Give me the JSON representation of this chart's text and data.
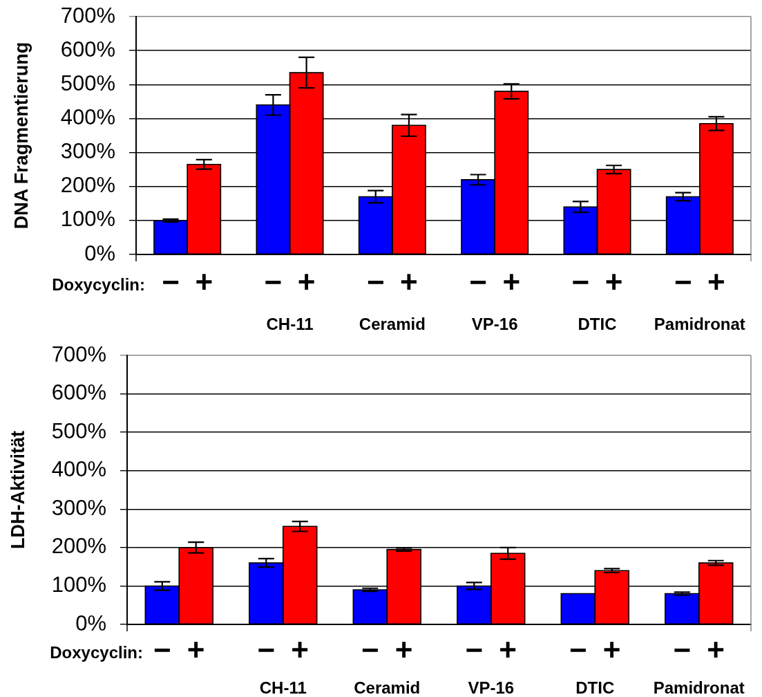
{
  "chart_data": [
    {
      "type": "bar",
      "ylabel": "DNA Fragmentierung",
      "legend_title": "Doxycyclin:",
      "legend": "bottom left",
      "categories": [
        null,
        "CH-11",
        "Ceramid",
        "VP-16",
        "DTIC",
        "Pamidronat"
      ],
      "series": [
        {
          "name": "−",
          "color": "#0000ff",
          "values": [
            100,
            440,
            170,
            220,
            140,
            170
          ],
          "errors": [
            4,
            30,
            18,
            15,
            16,
            12
          ]
        },
        {
          "name": "+",
          "color": "#ff0000",
          "values": [
            265,
            535,
            380,
            480,
            250,
            385
          ],
          "errors": [
            14,
            45,
            32,
            22,
            12,
            20
          ]
        }
      ],
      "ylim": [
        0,
        700
      ],
      "yticks": [
        {
          "value": 0,
          "label": "0%"
        },
        {
          "value": 100,
          "label": "100%"
        },
        {
          "value": 200,
          "label": "200%"
        },
        {
          "value": 300,
          "label": "300%"
        },
        {
          "value": 400,
          "label": "400%"
        },
        {
          "value": 500,
          "label": "500%"
        },
        {
          "value": 600,
          "label": "600%"
        },
        {
          "value": 700,
          "label": "700%"
        }
      ],
      "grid": "y"
    },
    {
      "type": "bar",
      "ylabel": "LDH-Aktivität",
      "legend_title": "Doxycyclin:",
      "legend": "bottom left",
      "categories": [
        null,
        "CH-11",
        "Ceramid",
        "VP-16",
        "DTIC",
        "Pamidronat"
      ],
      "series": [
        {
          "name": "−",
          "color": "#0000ff",
          "values": [
            100,
            160,
            90,
            100,
            80,
            80
          ],
          "errors": [
            11,
            11,
            4,
            9,
            null,
            4
          ]
        },
        {
          "name": "+",
          "color": "#ff0000",
          "values": [
            200,
            255,
            195,
            185,
            140,
            160
          ],
          "errors": [
            14,
            13,
            4,
            15,
            5,
            6
          ]
        }
      ],
      "ylim": [
        0,
        700
      ],
      "yticks": [
        {
          "value": 0,
          "label": "0%"
        },
        {
          "value": 100,
          "label": "100%"
        },
        {
          "value": 200,
          "label": "200%"
        },
        {
          "value": 300,
          "label": "300%"
        },
        {
          "value": 400,
          "label": "400%"
        },
        {
          "value": 500,
          "label": "500%"
        },
        {
          "value": 600,
          "label": "600%"
        },
        {
          "value": 700,
          "label": "700%"
        }
      ],
      "grid": "y"
    }
  ]
}
